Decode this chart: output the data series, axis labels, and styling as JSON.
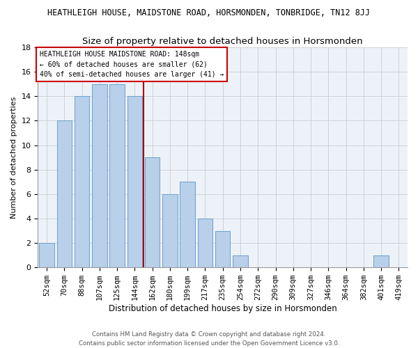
{
  "title": "HEATHLEIGH HOUSE, MAIDSTONE ROAD, HORSMONDEN, TONBRIDGE, TN12 8JJ",
  "subtitle": "Size of property relative to detached houses in Horsmonden",
  "xlabel": "Distribution of detached houses by size in Horsmonden",
  "ylabel": "Number of detached properties",
  "footer_line1": "Contains HM Land Registry data © Crown copyright and database right 2024.",
  "footer_line2": "Contains public sector information licensed under the Open Government Licence v3.0.",
  "categories": [
    "52sqm",
    "70sqm",
    "88sqm",
    "107sqm",
    "125sqm",
    "144sqm",
    "162sqm",
    "180sqm",
    "199sqm",
    "217sqm",
    "235sqm",
    "254sqm",
    "272sqm",
    "290sqm",
    "309sqm",
    "327sqm",
    "346sqm",
    "364sqm",
    "382sqm",
    "401sqm",
    "419sqm"
  ],
  "values": [
    2,
    12,
    14,
    15,
    15,
    14,
    9,
    6,
    7,
    4,
    3,
    1,
    0,
    0,
    0,
    0,
    0,
    0,
    0,
    1,
    0
  ],
  "bar_color": "#b8d0ea",
  "bar_edgecolor": "#6aa0cc",
  "grid_color": "#cccccc",
  "vline_x": 5.5,
  "vline_color": "#aa0000",
  "annotation_text": "HEATHLEIGH HOUSE MAIDSTONE ROAD: 148sqm\n← 60% of detached houses are smaller (62)\n40% of semi-detached houses are larger (41) →",
  "annotation_box_edgecolor": "#cc0000",
  "annotation_box_facecolor": "#ffffff",
  "ylim": [
    0,
    18
  ],
  "yticks": [
    0,
    2,
    4,
    6,
    8,
    10,
    12,
    14,
    16,
    18
  ],
  "bg_color": "#edf2f9",
  "fig_bg_color": "#ffffff",
  "title_fontsize": 8.5,
  "subtitle_fontsize": 9.5,
  "xlabel_fontsize": 8.5,
  "ylabel_fontsize": 8,
  "footer_fontsize": 6.2,
  "tick_fontsize": 7.5,
  "ytick_fontsize": 8
}
